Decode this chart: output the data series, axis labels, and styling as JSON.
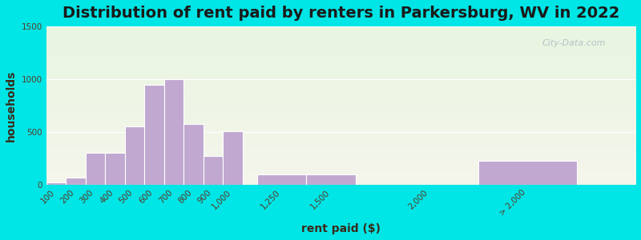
{
  "title": "Distribution of rent paid by renters in Parkersburg, WV in 2022",
  "xlabel": "rent paid ($)",
  "ylabel": "households",
  "bar_color": "#c0a8d0",
  "bar_edge_color": "#ffffff",
  "background_outer": "#00e5e5",
  "background_inner_top": "#e8f5e0",
  "background_inner_bottom": "#f5f5ec",
  "categories": [
    "100",
    "200",
    "300",
    "400",
    "500",
    "600",
    "700",
    "800",
    "900",
    "1,000",
    "1,250",
    "1,500",
    "2,000",
    "> 2,000"
  ],
  "x_positions": [
    100,
    200,
    300,
    400,
    500,
    600,
    700,
    800,
    900,
    1000,
    1250,
    1500,
    2000,
    2500
  ],
  "bar_widths": [
    100,
    100,
    100,
    100,
    100,
    100,
    100,
    100,
    100,
    100,
    250,
    250,
    500,
    500
  ],
  "values": [
    20,
    70,
    300,
    300,
    550,
    950,
    1000,
    575,
    270,
    510,
    100,
    100,
    0,
    230
  ],
  "xlim": [
    50,
    3050
  ],
  "ylim": [
    0,
    1500
  ],
  "yticks": [
    0,
    500,
    1000,
    1500
  ],
  "tick_positions": [
    100,
    200,
    300,
    400,
    500,
    600,
    700,
    800,
    900,
    1000,
    1250,
    1500,
    2000,
    2500
  ],
  "title_fontsize": 14,
  "axis_label_fontsize": 10,
  "tick_fontsize": 7.5,
  "watermark": "City-Data.com"
}
